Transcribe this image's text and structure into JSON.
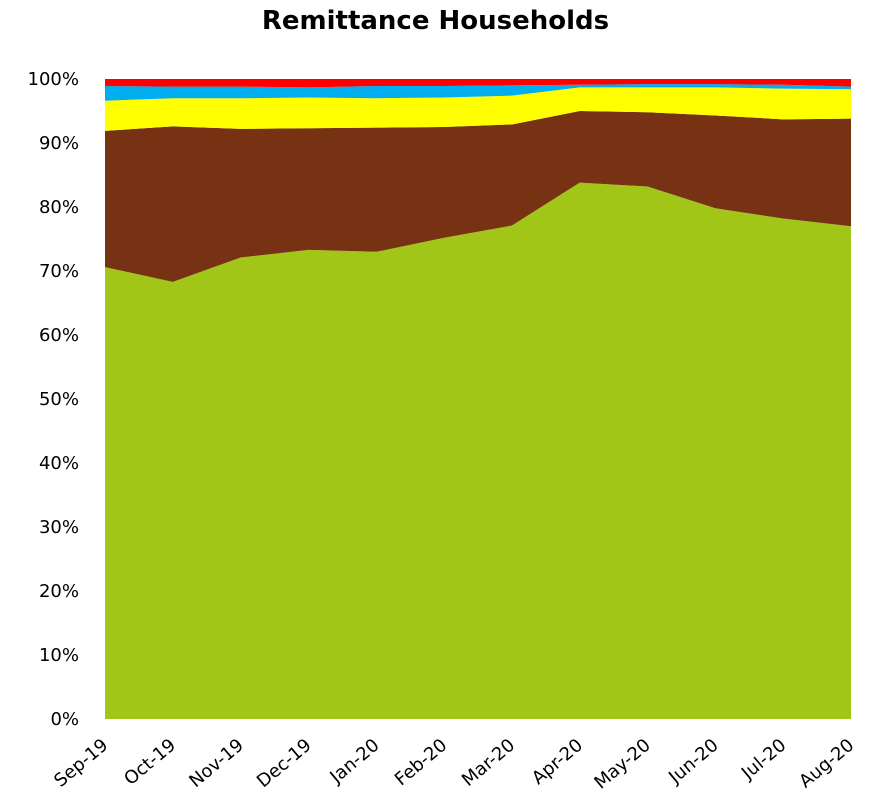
{
  "chart_data": {
    "type": "area",
    "stacked": true,
    "normalized_percent": true,
    "title": "Remittance Households",
    "xlabel": "",
    "ylabel": "",
    "ylim": [
      0,
      100
    ],
    "y_ticks": [
      "0%",
      "10%",
      "20%",
      "30%",
      "40%",
      "50%",
      "60%",
      "70%",
      "80%",
      "90%",
      "100%"
    ],
    "y_tick_values": [
      0,
      10,
      20,
      30,
      40,
      50,
      60,
      70,
      80,
      90,
      100
    ],
    "categories": [
      "Sep-19",
      "Oct-19",
      "Nov-19",
      "Dec-19",
      "Jan-20",
      "Feb-20",
      "Mar-20",
      "Apr-20",
      "May-20",
      "Jun-20",
      "Jul-20",
      "Aug-20"
    ],
    "legend": "none",
    "grid": false,
    "series": [
      {
        "color": "#a2c617",
        "values": [
          70.6,
          68.3,
          72.1,
          73.3,
          73.0,
          75.2,
          77.1,
          83.8,
          83.2,
          79.8,
          78.2,
          77.0
        ]
      },
      {
        "color": "#763212",
        "values": [
          21.3,
          24.3,
          20.1,
          19.0,
          19.4,
          17.3,
          15.8,
          11.2,
          11.6,
          14.5,
          15.5,
          16.8
        ]
      },
      {
        "color": "#ffff00",
        "values": [
          4.7,
          4.4,
          4.8,
          4.8,
          4.6,
          4.6,
          4.5,
          3.7,
          3.9,
          4.4,
          4.8,
          4.6
        ]
      },
      {
        "color": "#00aeef",
        "values": [
          2.3,
          1.8,
          1.8,
          1.6,
          1.9,
          1.8,
          1.6,
          0.4,
          0.5,
          0.5,
          0.6,
          0.4
        ]
      },
      {
        "color": "#ff0000",
        "values": [
          1.1,
          1.2,
          1.2,
          1.3,
          1.1,
          1.1,
          1.0,
          0.9,
          0.8,
          0.8,
          0.9,
          1.2
        ]
      }
    ]
  }
}
